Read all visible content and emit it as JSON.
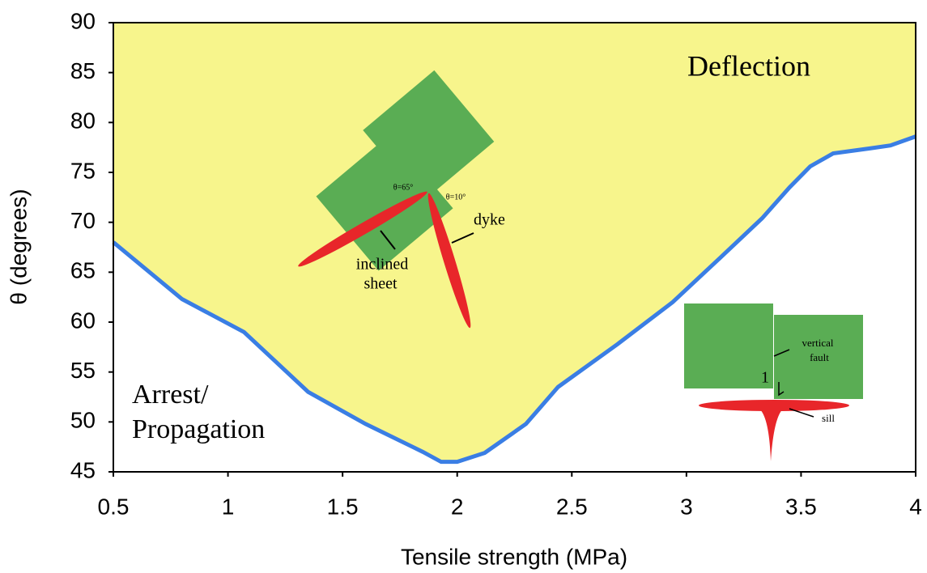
{
  "chart_data": {
    "type": "line",
    "xlabel": "Tensile strength (MPa)",
    "ylabel": "θ (degrees)",
    "x": [
      0.5,
      0.8,
      1.07,
      1.35,
      1.6,
      1.85,
      1.93,
      2.0,
      2.12,
      2.3,
      2.44,
      2.7,
      2.94,
      3.15,
      3.33,
      3.45,
      3.54,
      3.64,
      3.8,
      3.89,
      4.0
    ],
    "series": [
      {
        "color": "#3a7ee4",
        "values": [
          68,
          62.3,
          59,
          53,
          49.8,
          47,
          46,
          46,
          46.9,
          49.8,
          53.5,
          57.8,
          62,
          66.5,
          70.4,
          73.5,
          75.6,
          76.9,
          77.4,
          77.7,
          78.6
        ]
      }
    ],
    "fill_color": "#f7f58c",
    "xlim": [
      0.5,
      4
    ],
    "xticks": [
      0.5,
      1,
      1.5,
      2,
      2.5,
      3,
      3.5,
      4
    ],
    "ylim": [
      45,
      90
    ],
    "yticks": [
      45,
      50,
      55,
      60,
      65,
      70,
      75,
      80,
      85,
      90
    ],
    "grid": false,
    "annotations": [
      "Deflection",
      "Arrest/",
      "Propagation",
      "θ=65°",
      "θ=10°",
      "dyke",
      "inclined",
      "sheet",
      "vertical",
      "fault",
      "1",
      "sill"
    ]
  }
}
